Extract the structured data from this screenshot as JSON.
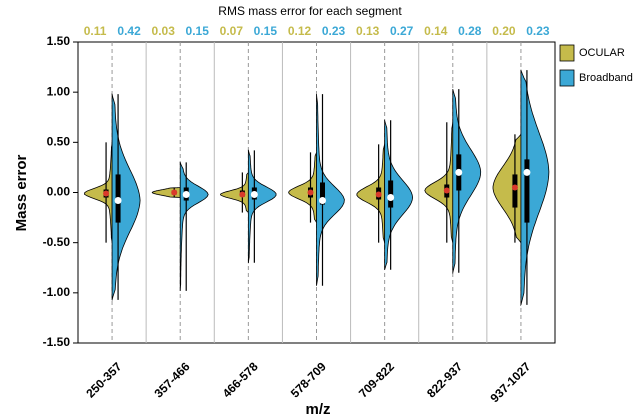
{
  "chart_data": {
    "type": "violin",
    "title": "RMS mass error for each segment",
    "ylabel": "Mass error",
    "xlabel": "m/z",
    "categories": [
      "250-357",
      "357-466",
      "466-578",
      "578-709",
      "709-822",
      "822-937",
      "937-1027"
    ],
    "ylim": [
      -1.5,
      1.5
    ],
    "yticks": [
      {
        "value": -1.5,
        "label": "-1.50"
      },
      {
        "value": -1,
        "label": "-1.00"
      },
      {
        "value": -0.5,
        "label": "-0.50"
      },
      {
        "value": 0,
        "label": "0.00"
      },
      {
        "value": 0.5,
        "label": "0.50"
      },
      {
        "value": 1,
        "label": "1.00"
      },
      {
        "value": 1.5,
        "label": "1.50"
      }
    ],
    "series": [
      {
        "name": "OCULAR",
        "color": "#c5bb4b",
        "rms": [
          0.11,
          0.03,
          0.07,
          0.12,
          0.13,
          0.14,
          {
            "value": 0.2,
            "label": "0.20"
          }
        ],
        "min": [
          -0.5,
          -0.05,
          -0.2,
          -0.3,
          -0.5,
          -0.5,
          -0.5
        ],
        "q1": [
          -0.05,
          -0.02,
          -0.04,
          -0.05,
          -0.07,
          -0.05,
          -0.15
        ],
        "median": [
          -0.01,
          0,
          -0.02,
          0,
          -0.02,
          0.02,
          0.05
        ],
        "q3": [
          0.03,
          0.02,
          0.02,
          0.05,
          0.05,
          0.08,
          0.18
        ],
        "max": [
          0.5,
          0.05,
          0.2,
          0.4,
          0.48,
          0.7,
          0.58
        ]
      },
      {
        "name": "Broadband",
        "color": "#3ba8d6",
        "rms": [
          0.42,
          0.15,
          0.15,
          0.23,
          0.27,
          0.28,
          0.23
        ],
        "min": [
          -1.07,
          -0.98,
          -0.7,
          -0.93,
          -0.77,
          -0.8,
          -1.12
        ],
        "q1": [
          -0.3,
          -0.08,
          -0.07,
          -0.12,
          -0.15,
          0.02,
          -0.3
        ],
        "median": [
          -0.08,
          -0.02,
          -0.02,
          -0.08,
          -0.05,
          0.2,
          0.2
        ],
        "q3": [
          0.18,
          0.05,
          0.05,
          0.1,
          0.12,
          0.38,
          0.33
        ],
        "max": [
          0.98,
          0.3,
          0.42,
          0.98,
          0.72,
          1.03,
          1.22
        ]
      }
    ]
  }
}
